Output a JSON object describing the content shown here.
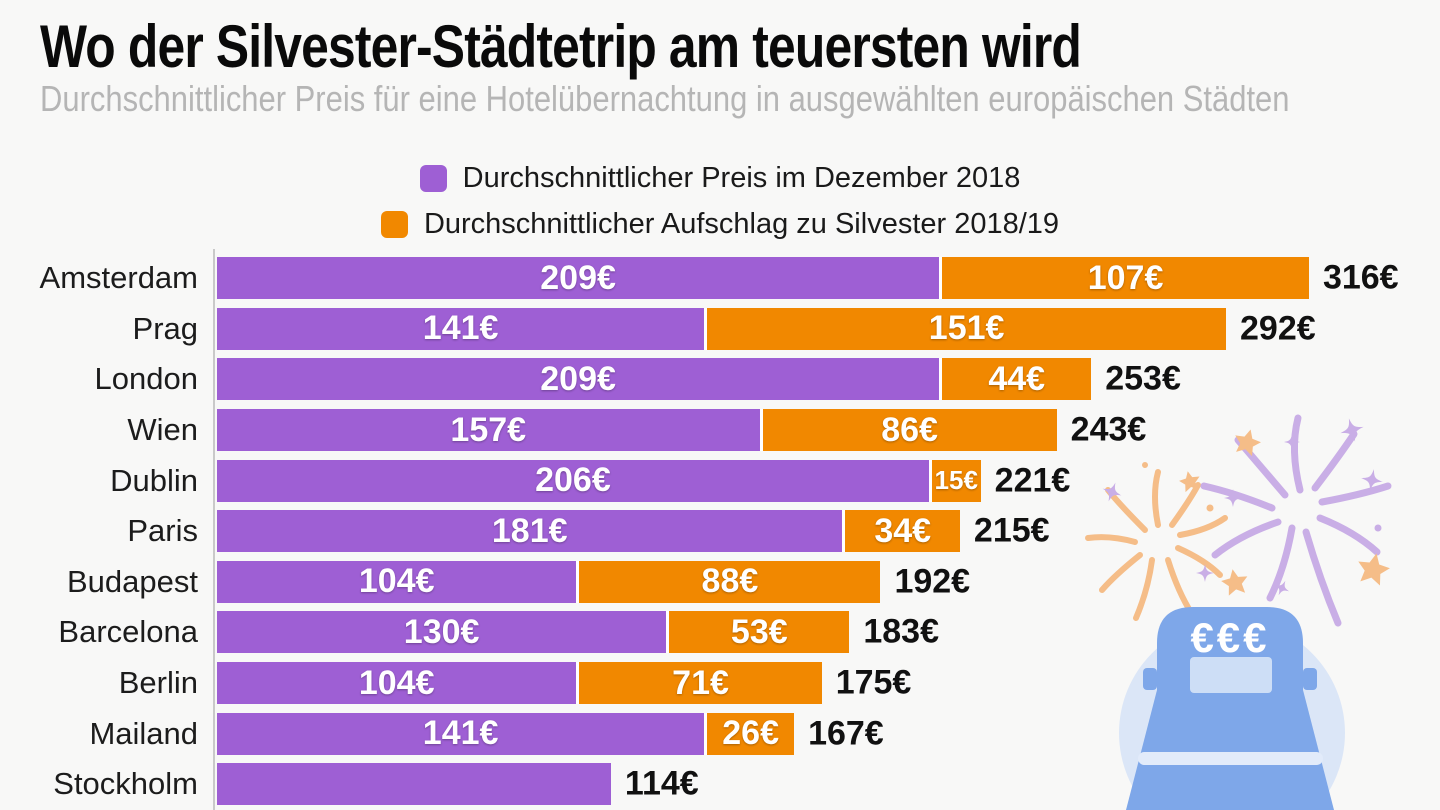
{
  "header": {
    "title": "Wo der Silvester-Städtetrip am teuersten wird",
    "subtitle": "Durchschnittlicher Preis für eine Hotelübernachtung in ausgewählten europäischen Städten"
  },
  "legend": {
    "items": [
      {
        "label": "Durchschnittlicher Preis im Dezember 2018",
        "color": "#9e5fd4"
      },
      {
        "label": "Durchschnittlicher Aufschlag zu Silvester 2018/19",
        "color": "#f18800"
      }
    ]
  },
  "chart_data": {
    "type": "bar",
    "orientation": "horizontal",
    "stacked": true,
    "value_suffix": "€",
    "title": "Wo der Silvester-Städtetrip am teuersten wird",
    "subtitle": "Durchschnittlicher Preis für eine Hotelübernachtung in ausgewählten europäischen Städten",
    "categories": [
      "Amsterdam",
      "Prag",
      "London",
      "Wien",
      "Dublin",
      "Paris",
      "Budapest",
      "Barcelona",
      "Berlin",
      "Mailand",
      "Stockholm"
    ],
    "series": [
      {
        "name": "Durchschnittlicher Preis im Dezember 2018",
        "color": "#9e5fd4",
        "values": [
          209,
          141,
          209,
          157,
          206,
          181,
          104,
          130,
          104,
          141,
          114
        ]
      },
      {
        "name": "Durchschnittlicher Aufschlag zu Silvester 2018/19",
        "color": "#f18800",
        "values": [
          107,
          151,
          44,
          86,
          15,
          34,
          88,
          53,
          71,
          26,
          null
        ]
      }
    ],
    "totals": [
      316,
      292,
      253,
      243,
      221,
      215,
      192,
      183,
      175,
      167,
      114
    ],
    "xlim": [
      0,
      354
    ],
    "grid": false,
    "legend_position": "top-center",
    "bar_label_color": "#ffffff",
    "total_label_color": "#111111"
  },
  "colors": {
    "background": "#f8f8f7",
    "axis_line": "#c9c9c9",
    "subtitle_text": "#b5b5b5"
  },
  "decoration": {
    "bed_sign_text": "€€€",
    "firework_orange": "#f5bd88",
    "firework_purple": "#c9aee6",
    "bed_blue": "#7ea7e9",
    "bed_circle": "#dbe6f7",
    "bed_pillow": "#cddef6",
    "bed_stripe": "#e2ebfa"
  }
}
